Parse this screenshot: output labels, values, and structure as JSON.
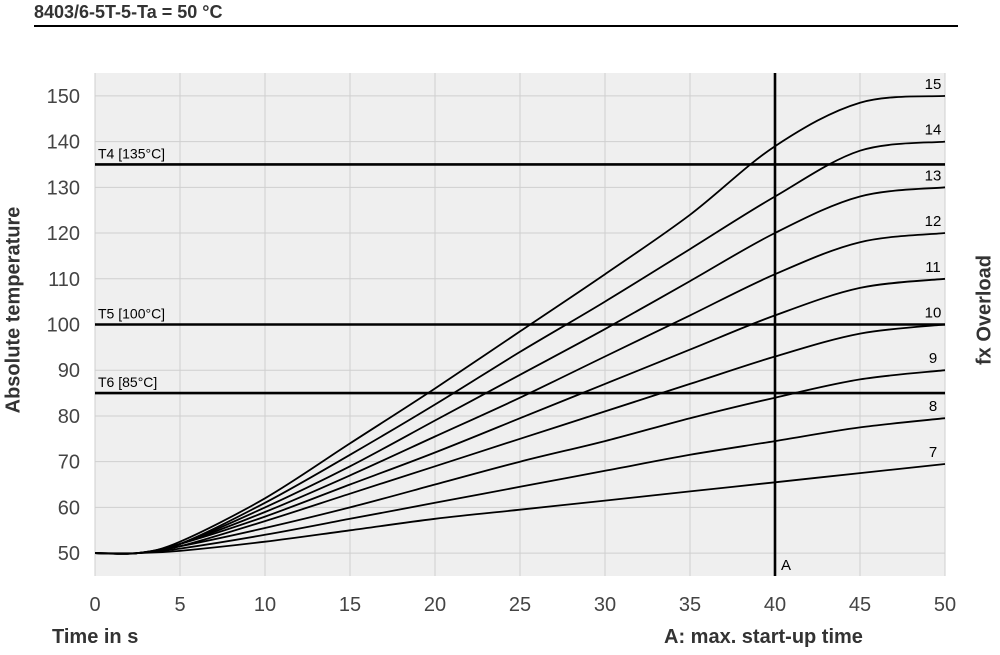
{
  "header": {
    "title": "8403/6-5T-5-Ta = 50 °C"
  },
  "chart_data": {
    "type": "line",
    "title": "8403/6-5T-5-Ta = 50 °C",
    "xlabel": "Time in s",
    "ylabel": "Absolute temperature",
    "y2label": "fx Overload",
    "xlim": [
      0,
      50
    ],
    "ylim": [
      45,
      155
    ],
    "x_ticks": [
      0,
      5,
      10,
      15,
      20,
      25,
      30,
      35,
      40,
      45,
      50
    ],
    "y_ticks": [
      50,
      60,
      70,
      80,
      90,
      100,
      110,
      120,
      130,
      140,
      150
    ],
    "grid": true,
    "series": [
      {
        "name": "7",
        "x": [
          0,
          2.5,
          5,
          10,
          15,
          20,
          25,
          30,
          35,
          40,
          45,
          50
        ],
        "y": [
          50,
          50,
          50.5,
          52.5,
          55,
          57.5,
          59.5,
          61.5,
          63.5,
          65.5,
          67.5,
          69.5
        ]
      },
      {
        "name": "8",
        "x": [
          0,
          2.5,
          5,
          10,
          15,
          20,
          25,
          30,
          35,
          40,
          45,
          50
        ],
        "y": [
          50,
          50,
          51,
          54,
          57.5,
          61,
          64.5,
          68,
          71.5,
          74.5,
          77.5,
          79.5
        ]
      },
      {
        "name": "9",
        "x": [
          0,
          2.5,
          5,
          10,
          15,
          20,
          25,
          30,
          35,
          40,
          45,
          50
        ],
        "y": [
          50,
          50,
          51.5,
          55.5,
          60,
          65,
          70,
          74.5,
          79.5,
          84,
          88,
          90
        ]
      },
      {
        "name": "10",
        "x": [
          0,
          2.5,
          5,
          10,
          15,
          20,
          25,
          30,
          35,
          40,
          45,
          50
        ],
        "y": [
          50,
          50,
          51.5,
          57,
          63,
          69,
          75,
          81,
          87,
          93,
          98,
          100
        ]
      },
      {
        "name": "11",
        "x": [
          0,
          2.5,
          5,
          10,
          15,
          20,
          25,
          30,
          35,
          40,
          45,
          50
        ],
        "y": [
          50,
          50,
          52,
          58,
          65,
          72,
          79.5,
          87,
          94.5,
          102,
          108,
          110
        ]
      },
      {
        "name": "12",
        "x": [
          0,
          2.5,
          5,
          10,
          15,
          20,
          25,
          30,
          35,
          40,
          45,
          50
        ],
        "y": [
          50,
          50,
          52,
          59,
          67,
          75.5,
          84,
          93,
          102,
          111,
          118,
          120
        ]
      },
      {
        "name": "13",
        "x": [
          0,
          2.5,
          5,
          10,
          15,
          20,
          25,
          30,
          35,
          40,
          45,
          50
        ],
        "y": [
          50,
          50,
          52,
          60,
          69,
          79,
          89,
          99,
          109.5,
          120,
          128,
          130
        ]
      },
      {
        "name": "14",
        "x": [
          0,
          2.5,
          5,
          10,
          15,
          20,
          25,
          30,
          35,
          40,
          45,
          50
        ],
        "y": [
          50,
          50,
          52,
          61,
          71.5,
          82.5,
          94,
          105,
          116.5,
          128,
          138,
          140
        ]
      },
      {
        "name": "15",
        "x": [
          0,
          2.5,
          5,
          10,
          15,
          20,
          25,
          30,
          35,
          40,
          45,
          50
        ],
        "y": [
          50,
          50,
          52.5,
          62,
          74,
          86,
          98.5,
          111,
          124,
          139,
          148.5,
          150
        ]
      }
    ],
    "hlines": [
      {
        "label": "T4 [135°C]",
        "y": 135
      },
      {
        "label": "T5 [100°C]",
        "y": 100
      },
      {
        "label": "T6 [85°C]",
        "y": 85
      }
    ],
    "vline": {
      "label": "A",
      "x": 40
    },
    "annotation": "A: max. start-up time"
  }
}
